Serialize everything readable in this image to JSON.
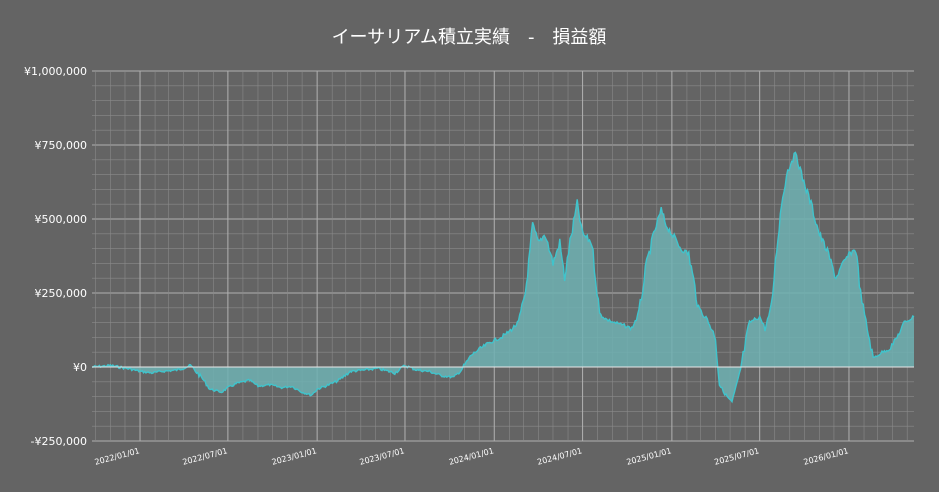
{
  "chart_data": {
    "type": "area",
    "title": "イーサリアム積立実績　-　損益額",
    "xlabel": "",
    "ylabel": "",
    "xlim": [
      "2021-09-24",
      "2026-05-15"
    ],
    "ylim": [
      -250000,
      1000000
    ],
    "grid": true,
    "legend": "none",
    "colors": {
      "background": "#646464",
      "line": "#40c4cc",
      "fill": "#6fb1b3",
      "grid": "#8a8a8a",
      "text": "#ffffff"
    },
    "y_ticks": [
      {
        "value": 1000000,
        "label": "¥1,000,000"
      },
      {
        "value": 750000,
        "label": "¥750,000"
      },
      {
        "value": 500000,
        "label": "¥500,000"
      },
      {
        "value": 250000,
        "label": "¥250,000"
      },
      {
        "value": 0,
        "label": "¥0"
      },
      {
        "value": -250000,
        "label": "-¥250,000"
      }
    ],
    "x_ticks": [
      {
        "date": "2022-01-01",
        "label": "2022/01/01"
      },
      {
        "date": "2022-07-01",
        "label": "2022/07/01"
      },
      {
        "date": "2023-01-01",
        "label": "2023/01/01"
      },
      {
        "date": "2023-07-01",
        "label": "2023/07/01"
      },
      {
        "date": "2024-01-01",
        "label": "2024/01/01"
      },
      {
        "date": "2024-07-01",
        "label": "2024/07/01"
      },
      {
        "date": "2025-01-01",
        "label": "2025/01/01"
      },
      {
        "date": "2025-07-01",
        "label": "2025/07/01"
      },
      {
        "date": "2026-01-01",
        "label": "2026/01/01"
      }
    ],
    "series": [
      {
        "x": [
          "2021-09-24",
          "2021-11-01",
          "2021-12-15",
          "2022-01-01",
          "2022-01-25",
          "2022-02-15",
          "2022-03-20",
          "2022-04-15",
          "2022-05-10",
          "2022-05-25",
          "2022-06-18",
          "2022-07-01",
          "2022-07-20",
          "2022-08-15",
          "2022-09-01",
          "2022-09-25",
          "2022-10-20",
          "2022-11-10",
          "2022-12-01",
          "2022-12-20",
          "2023-01-01",
          "2023-01-25",
          "2023-02-15",
          "2023-03-10",
          "2023-04-10",
          "2023-05-05",
          "2023-06-10",
          "2023-07-01",
          "2023-07-25",
          "2023-08-20",
          "2023-09-15",
          "2023-10-10",
          "2023-10-25",
          "2023-11-15",
          "2023-12-01",
          "2023-12-20",
          "2024-01-01",
          "2024-01-15",
          "2024-02-01",
          "2024-02-20",
          "2024-03-05",
          "2024-03-12",
          "2024-03-20",
          "2024-04-01",
          "2024-04-15",
          "2024-05-01",
          "2024-05-15",
          "2024-05-25",
          "2024-06-05",
          "2024-06-20",
          "2024-07-01",
          "2024-07-20",
          "2024-08-05",
          "2024-08-20",
          "2024-09-05",
          "2024-09-25",
          "2024-10-10",
          "2024-10-25",
          "2024-11-10",
          "2024-11-25",
          "2024-12-10",
          "2024-12-20",
          "2025-01-01",
          "2025-01-20",
          "2025-02-05",
          "2025-02-25",
          "2025-03-15",
          "2025-04-01",
          "2025-04-09",
          "2025-04-20",
          "2025-05-05",
          "2025-05-20",
          "2025-06-10",
          "2025-07-01",
          "2025-07-12",
          "2025-07-25",
          "2025-08-05",
          "2025-08-15",
          "2025-08-25",
          "2025-09-05",
          "2025-09-15",
          "2025-09-25",
          "2025-10-05",
          "2025-10-15",
          "2025-11-01",
          "2025-11-20",
          "2025-12-05",
          "2025-12-20",
          "2026-01-01",
          "2026-01-15",
          "2026-01-25",
          "2026-02-05",
          "2026-02-20",
          "2026-03-10",
          "2026-03-25",
          "2026-04-10",
          "2026-04-25",
          "2026-05-15"
        ],
        "values": [
          0,
          5000,
          -8000,
          -15000,
          -20000,
          -15000,
          -10000,
          5000,
          -40000,
          -75000,
          -85000,
          -70000,
          -55000,
          -45000,
          -65000,
          -60000,
          -70000,
          -65000,
          -85000,
          -95000,
          -75000,
          -60000,
          -45000,
          -15000,
          -10000,
          -5000,
          -20000,
          5000,
          -10000,
          -15000,
          -30000,
          -35000,
          -10000,
          40000,
          60000,
          80000,
          90000,
          100000,
          120000,
          150000,
          250000,
          350000,
          480000,
          420000,
          450000,
          350000,
          420000,
          300000,
          420000,
          550000,
          450000,
          420000,
          180000,
          160000,
          150000,
          140000,
          130000,
          180000,
          350000,
          450000,
          530000,
          480000,
          450000,
          400000,
          380000,
          200000,
          160000,
          100000,
          -60000,
          -90000,
          -120000,
          -30000,
          150000,
          170000,
          130000,
          200000,
          400000,
          550000,
          650000,
          700000,
          720000,
          650000,
          600000,
          550000,
          450000,
          380000,
          300000,
          350000,
          380000,
          400000,
          250000,
          150000,
          30000,
          50000,
          60000,
          100000,
          150000,
          170000
        ]
      }
    ]
  }
}
